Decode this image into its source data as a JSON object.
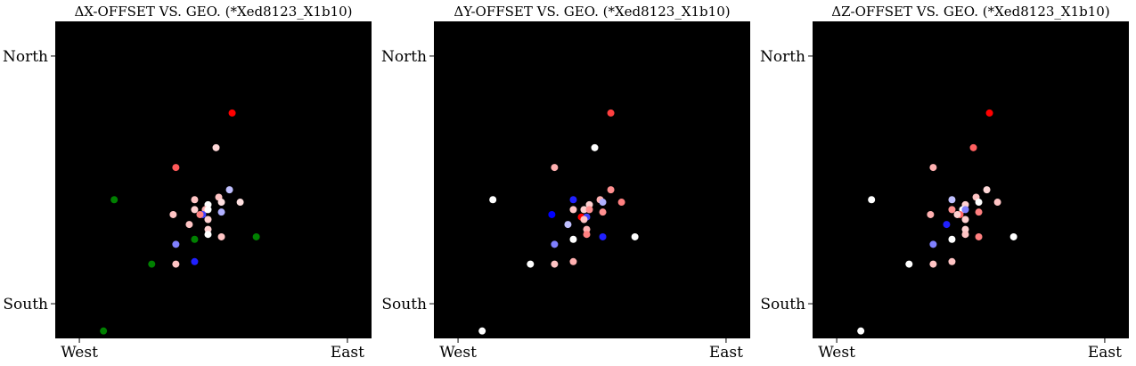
{
  "chart_data": [
    {
      "type": "scatter",
      "title": "ΔX-OFFSET VS. GEO. (*Xed8123_X1b10)",
      "x_ticks": [
        "West",
        "East"
      ],
      "y_ticks": [
        "North",
        "South"
      ],
      "xlim": [
        -0.09,
        1.09
      ],
      "ylim": [
        -0.14,
        1.14
      ],
      "grid": false,
      "background": "#000000",
      "points": [
        {
          "x": 0.57,
          "y": 0.77,
          "color": "#ff0000"
        },
        {
          "x": 0.51,
          "y": 0.63,
          "color": "#ffd8d8"
        },
        {
          "x": 0.36,
          "y": 0.55,
          "color": "#ff5a5a"
        },
        {
          "x": 0.56,
          "y": 0.46,
          "color": "#c0c0ff"
        },
        {
          "x": 0.13,
          "y": 0.42,
          "color": "#008000"
        },
        {
          "x": 0.43,
          "y": 0.42,
          "color": "#ffc4c4"
        },
        {
          "x": 0.52,
          "y": 0.43,
          "color": "#ffc4c4"
        },
        {
          "x": 0.6,
          "y": 0.41,
          "color": "#ffe0e0"
        },
        {
          "x": 0.48,
          "y": 0.4,
          "color": "#ffffff"
        },
        {
          "x": 0.53,
          "y": 0.41,
          "color": "#ffe0e0"
        },
        {
          "x": 0.43,
          "y": 0.38,
          "color": "#ffd0d0"
        },
        {
          "x": 0.47,
          "y": 0.38,
          "color": "#ffb0b0"
        },
        {
          "x": 0.48,
          "y": 0.38,
          "color": "#ffffff"
        },
        {
          "x": 0.35,
          "y": 0.36,
          "color": "#ffc4c4"
        },
        {
          "x": 0.46,
          "y": 0.36,
          "color": "#4040ff"
        },
        {
          "x": 0.45,
          "y": 0.36,
          "color": "#ff8080"
        },
        {
          "x": 0.53,
          "y": 0.37,
          "color": "#b0b0ff"
        },
        {
          "x": 0.48,
          "y": 0.34,
          "color": "#ffd0d0"
        },
        {
          "x": 0.41,
          "y": 0.32,
          "color": "#ffc4c4"
        },
        {
          "x": 0.48,
          "y": 0.3,
          "color": "#ffd0d0"
        },
        {
          "x": 0.48,
          "y": 0.28,
          "color": "#ffffff"
        },
        {
          "x": 0.53,
          "y": 0.27,
          "color": "#ffc4c4"
        },
        {
          "x": 0.43,
          "y": 0.26,
          "color": "#008000"
        },
        {
          "x": 0.66,
          "y": 0.27,
          "color": "#008000"
        },
        {
          "x": 0.36,
          "y": 0.24,
          "color": "#8080ff"
        },
        {
          "x": 0.27,
          "y": 0.16,
          "color": "#008000"
        },
        {
          "x": 0.36,
          "y": 0.16,
          "color": "#ffc4c4"
        },
        {
          "x": 0.43,
          "y": 0.17,
          "color": "#2020ff"
        },
        {
          "x": 0.09,
          "y": -0.11,
          "color": "#008000"
        }
      ]
    },
    {
      "type": "scatter",
      "title": "ΔY-OFFSET VS. GEO. (*Xed8123_X1b10)",
      "x_ticks": [
        "West",
        "East"
      ],
      "y_ticks": [
        "North",
        "South"
      ],
      "xlim": [
        -0.09,
        1.09
      ],
      "ylim": [
        -0.14,
        1.14
      ],
      "grid": false,
      "background": "#000000",
      "points": [
        {
          "x": 0.57,
          "y": 0.77,
          "color": "#ff4040"
        },
        {
          "x": 0.51,
          "y": 0.63,
          "color": "#ffffff"
        },
        {
          "x": 0.36,
          "y": 0.55,
          "color": "#ffb0b0"
        },
        {
          "x": 0.57,
          "y": 0.46,
          "color": "#ff9090"
        },
        {
          "x": 0.13,
          "y": 0.42,
          "color": "#ffffff"
        },
        {
          "x": 0.43,
          "y": 0.42,
          "color": "#2020ff"
        },
        {
          "x": 0.53,
          "y": 0.42,
          "color": "#ffb0b0"
        },
        {
          "x": 0.61,
          "y": 0.41,
          "color": "#ff8080"
        },
        {
          "x": 0.49,
          "y": 0.4,
          "color": "#ffd0d0"
        },
        {
          "x": 0.54,
          "y": 0.41,
          "color": "#b0b0ff"
        },
        {
          "x": 0.43,
          "y": 0.38,
          "color": "#ffc4c4"
        },
        {
          "x": 0.47,
          "y": 0.38,
          "color": "#ffd0d0"
        },
        {
          "x": 0.49,
          "y": 0.38,
          "color": "#ff9090"
        },
        {
          "x": 0.35,
          "y": 0.36,
          "color": "#0000ff"
        },
        {
          "x": 0.46,
          "y": 0.35,
          "color": "#ff0000"
        },
        {
          "x": 0.48,
          "y": 0.35,
          "color": "#4040ff"
        },
        {
          "x": 0.54,
          "y": 0.37,
          "color": "#ff9090"
        },
        {
          "x": 0.47,
          "y": 0.34,
          "color": "#ffc4c4"
        },
        {
          "x": 0.41,
          "y": 0.32,
          "color": "#c0c0ff"
        },
        {
          "x": 0.48,
          "y": 0.3,
          "color": "#ffb0b0"
        },
        {
          "x": 0.48,
          "y": 0.28,
          "color": "#ff8080"
        },
        {
          "x": 0.54,
          "y": 0.27,
          "color": "#2020ff"
        },
        {
          "x": 0.43,
          "y": 0.26,
          "color": "#ffffff"
        },
        {
          "x": 0.66,
          "y": 0.27,
          "color": "#ffffff"
        },
        {
          "x": 0.36,
          "y": 0.24,
          "color": "#8080ff"
        },
        {
          "x": 0.27,
          "y": 0.16,
          "color": "#ffffff"
        },
        {
          "x": 0.36,
          "y": 0.16,
          "color": "#ffc4c4"
        },
        {
          "x": 0.43,
          "y": 0.17,
          "color": "#ffb0b0"
        },
        {
          "x": 0.09,
          "y": -0.11,
          "color": "#ffffff"
        }
      ]
    },
    {
      "type": "scatter",
      "title": "ΔZ-OFFSET VS. GEO. (*Xed8123_X1b10)",
      "x_ticks": [
        "West",
        "East"
      ],
      "y_ticks": [
        "North",
        "South"
      ],
      "xlim": [
        -0.09,
        1.09
      ],
      "ylim": [
        -0.14,
        1.14
      ],
      "grid": false,
      "background": "#000000",
      "points": [
        {
          "x": 0.57,
          "y": 0.77,
          "color": "#ff0000"
        },
        {
          "x": 0.51,
          "y": 0.63,
          "color": "#ff6060"
        },
        {
          "x": 0.36,
          "y": 0.55,
          "color": "#ffb0b0"
        },
        {
          "x": 0.56,
          "y": 0.46,
          "color": "#ffd8d8"
        },
        {
          "x": 0.13,
          "y": 0.42,
          "color": "#ffffff"
        },
        {
          "x": 0.43,
          "y": 0.42,
          "color": "#c0c0ff"
        },
        {
          "x": 0.52,
          "y": 0.43,
          "color": "#ffc4c4"
        },
        {
          "x": 0.6,
          "y": 0.41,
          "color": "#ffc4c4"
        },
        {
          "x": 0.48,
          "y": 0.4,
          "color": "#ffd0d0"
        },
        {
          "x": 0.53,
          "y": 0.41,
          "color": "#ffffff"
        },
        {
          "x": 0.43,
          "y": 0.38,
          "color": "#ff9090"
        },
        {
          "x": 0.47,
          "y": 0.38,
          "color": "#ffffff"
        },
        {
          "x": 0.48,
          "y": 0.38,
          "color": "#8080ff"
        },
        {
          "x": 0.35,
          "y": 0.36,
          "color": "#ffb0b0"
        },
        {
          "x": 0.46,
          "y": 0.36,
          "color": "#ff6060"
        },
        {
          "x": 0.45,
          "y": 0.36,
          "color": "#ffd0d0"
        },
        {
          "x": 0.53,
          "y": 0.37,
          "color": "#ff8080"
        },
        {
          "x": 0.48,
          "y": 0.34,
          "color": "#ffd0d0"
        },
        {
          "x": 0.41,
          "y": 0.32,
          "color": "#2020ff"
        },
        {
          "x": 0.48,
          "y": 0.3,
          "color": "#ffd0d0"
        },
        {
          "x": 0.48,
          "y": 0.28,
          "color": "#ffc4c4"
        },
        {
          "x": 0.53,
          "y": 0.27,
          "color": "#ff8080"
        },
        {
          "x": 0.43,
          "y": 0.26,
          "color": "#ffffff"
        },
        {
          "x": 0.66,
          "y": 0.27,
          "color": "#ffffff"
        },
        {
          "x": 0.36,
          "y": 0.24,
          "color": "#8080ff"
        },
        {
          "x": 0.27,
          "y": 0.16,
          "color": "#ffffff"
        },
        {
          "x": 0.36,
          "y": 0.16,
          "color": "#ffc4c4"
        },
        {
          "x": 0.43,
          "y": 0.17,
          "color": "#ffc4c4"
        },
        {
          "x": 0.09,
          "y": -0.11,
          "color": "#ffffff"
        }
      ]
    }
  ]
}
